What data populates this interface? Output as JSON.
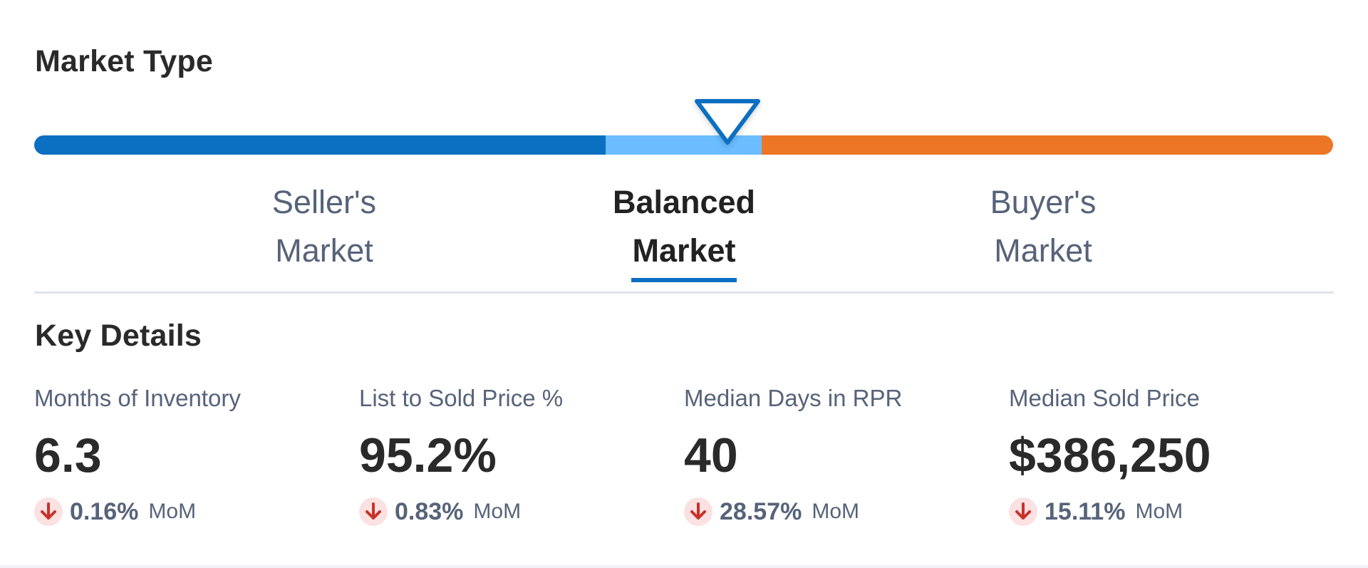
{
  "market_type": {
    "title": "Market Type",
    "gauge": {
      "colors": {
        "seller": "#0b6fc2",
        "balanced": "#6bbdff",
        "buyer": "#ec7625"
      },
      "segments_percent": {
        "seller": 44,
        "balanced": 12
      },
      "marker_position_percent": 53.4
    },
    "labels": [
      {
        "line1": "Seller's",
        "line2": "Market",
        "active": false
      },
      {
        "line1": "Balanced",
        "line2": "Market",
        "active": true
      },
      {
        "line1": "Buyer's",
        "line2": "Market",
        "active": false
      }
    ]
  },
  "key_details": {
    "title": "Key Details",
    "stats": [
      {
        "label": "Months of Inventory",
        "value": "6.3",
        "change": "0.16%",
        "unit": "MoM",
        "direction": "down"
      },
      {
        "label": "List to Sold Price %",
        "value": "95.2%",
        "change": "0.83%",
        "unit": "MoM",
        "direction": "down"
      },
      {
        "label": "Median Days in RPR",
        "value": "40",
        "change": "28.57%",
        "unit": "MoM",
        "direction": "down"
      },
      {
        "label": "Median Sold Price",
        "value": "$386,250",
        "change": "15.11%",
        "unit": "MoM",
        "direction": "down"
      }
    ],
    "down_color": "#c8322a"
  }
}
